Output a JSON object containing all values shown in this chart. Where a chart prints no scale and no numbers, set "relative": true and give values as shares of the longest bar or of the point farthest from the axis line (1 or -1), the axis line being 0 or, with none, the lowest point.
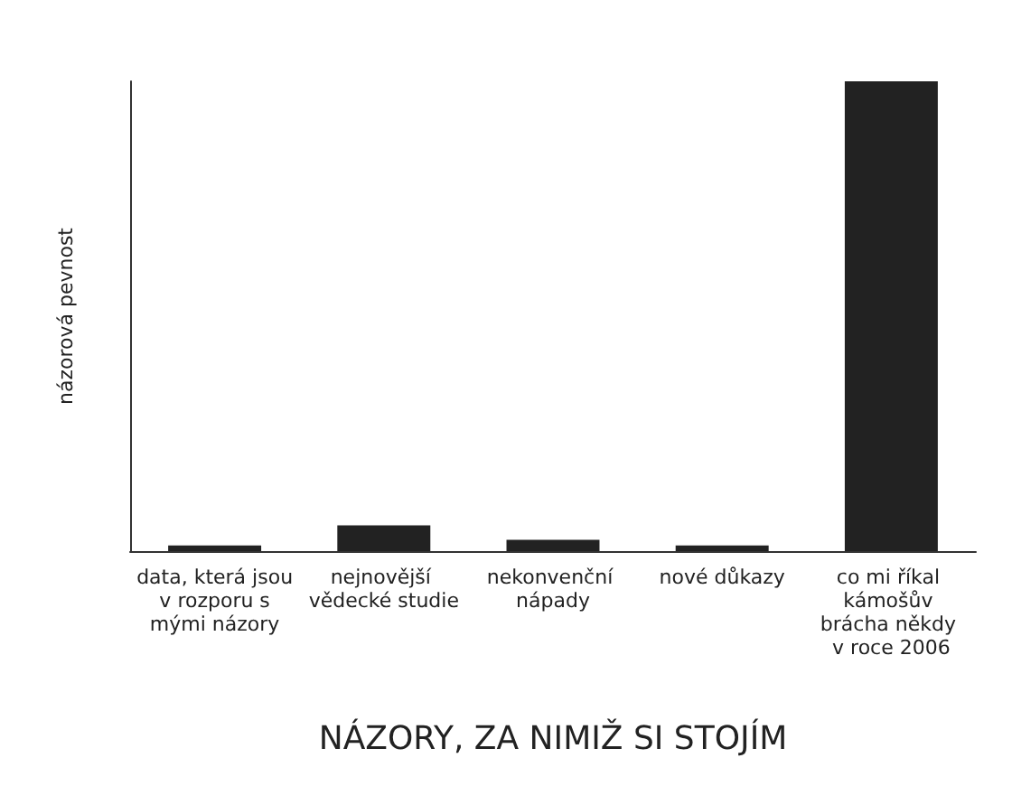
{
  "chart_data": {
    "type": "bar",
    "relative": true,
    "xlabel": "NÁZORY, ZA NIMIŽ SI STOJÍM",
    "ylabel": "názorová pevnost",
    "categories": [
      "data, která jsou v rozporu s mými názory",
      "nejnovější vědecké studie",
      "nekonvenční nápady",
      "nové důkazy",
      "co mi říkal kámošův brácha někdy v roce 2006"
    ],
    "values": [
      0.012,
      0.055,
      0.024,
      0.012,
      1
    ],
    "color": "#222222"
  }
}
